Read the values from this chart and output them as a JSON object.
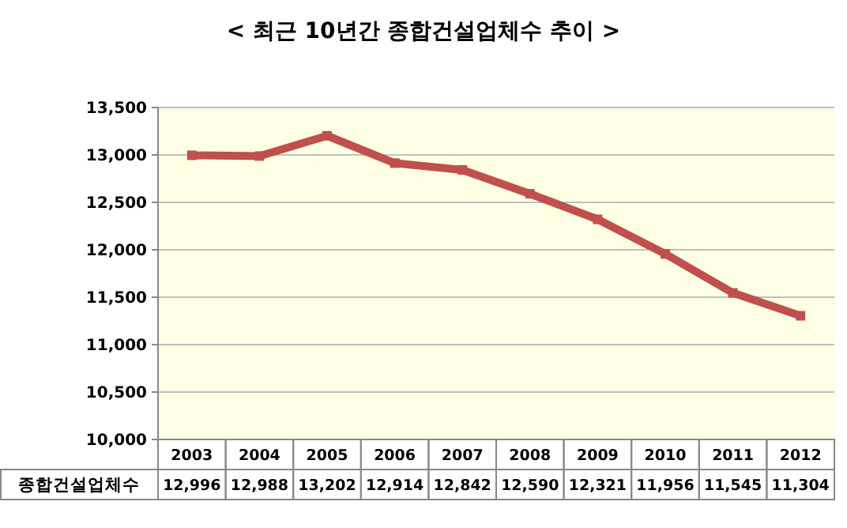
{
  "chart_data": {
    "type": "line",
    "title": "< 최근 10년간 종합건설업체수 추이 >",
    "categories": [
      "2003",
      "2004",
      "2005",
      "2006",
      "2007",
      "2008",
      "2009",
      "2010",
      "2011",
      "2012"
    ],
    "series": [
      {
        "name": "종합건설업체수",
        "color": "#c0504d",
        "values": [
          12996,
          12988,
          13202,
          12914,
          12842,
          12590,
          12321,
          11956,
          11545,
          11304
        ],
        "value_labels": [
          "12,996",
          "12,988",
          "13,202",
          "12,914",
          "12,842",
          "12,590",
          "12,321",
          "11,956",
          "11,545",
          "11,304"
        ]
      }
    ],
    "ylim": [
      10000,
      13500
    ],
    "yticks": [
      {
        "value": 10000,
        "label": "10,000"
      },
      {
        "value": 10500,
        "label": "10,500"
      },
      {
        "value": 11000,
        "label": "11,000"
      },
      {
        "value": 11500,
        "label": "11,500"
      },
      {
        "value": 12000,
        "label": "12,000"
      },
      {
        "value": 12500,
        "label": "12,500"
      },
      {
        "value": 13000,
        "label": "13,000"
      },
      {
        "value": 13500,
        "label": "13,500"
      }
    ],
    "grid": "y",
    "marker": "square",
    "line_style": "solid"
  }
}
